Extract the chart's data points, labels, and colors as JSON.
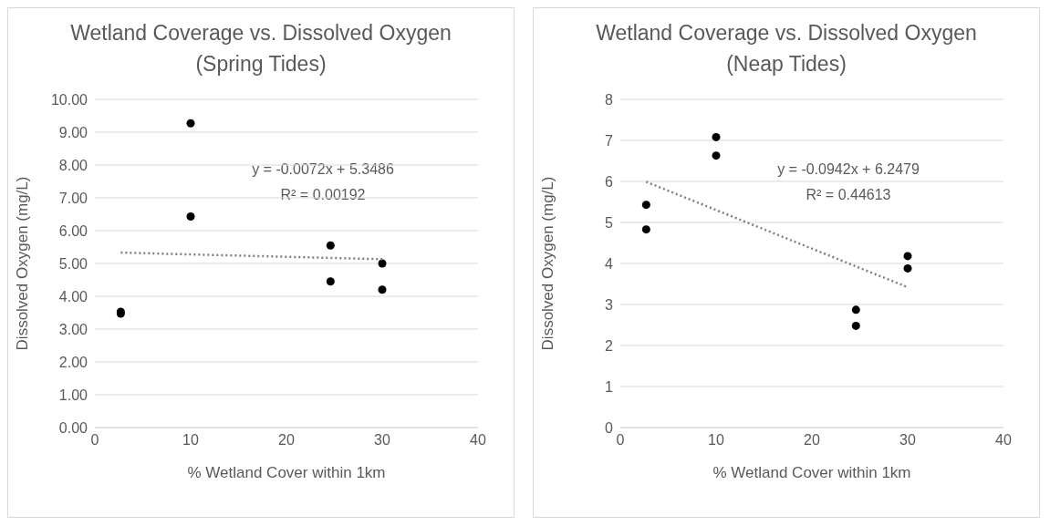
{
  "chart_data": [
    {
      "type": "scatter",
      "title": "Wetland Coverage vs. Dissolved Oxygen (Spring Tides)",
      "xlabel": "% Wetland Cover within 1km",
      "ylabel": "Dissolved Oxygen (mg/L)",
      "annotations": [
        "y = -0.0072x + 5.3486",
        "R² = 0.00192"
      ],
      "xlim": [
        0,
        40
      ],
      "xticks": [
        0,
        10,
        20,
        30,
        40
      ],
      "ylim": [
        0,
        10
      ],
      "yticks": [
        {
          "value": 0,
          "label": "0.00"
        },
        {
          "value": 1,
          "label": "1.00"
        },
        {
          "value": 2,
          "label": "2.00"
        },
        {
          "value": 3,
          "label": "3.00"
        },
        {
          "value": 4,
          "label": "4.00"
        },
        {
          "value": 5,
          "label": "5.00"
        },
        {
          "value": 6,
          "label": "6.00"
        },
        {
          "value": 7,
          "label": "7.00"
        },
        {
          "value": 8,
          "label": "8.00"
        },
        {
          "value": 9,
          "label": "9.00"
        },
        {
          "value": 10,
          "label": "10.00"
        }
      ],
      "grid": "y",
      "legend": false,
      "series": [
        {
          "marker": "circle",
          "color": "#000000",
          "x": [
            2.7,
            2.7,
            10,
            10,
            24.6,
            24.6,
            30,
            30
          ],
          "values": [
            3.53,
            3.47,
            9.27,
            6.43,
            5.55,
            4.45,
            5.0,
            4.2
          ]
        },
        {
          "type": "line",
          "color": "#808080",
          "line_style": "dotted",
          "x": [
            2.7,
            30
          ],
          "values": [
            5.33,
            5.13
          ]
        }
      ]
    },
    {
      "type": "scatter",
      "title": "Wetland Coverage vs. Dissolved Oxygen (Neap Tides)",
      "xlabel": "% Wetland Cover within 1km",
      "ylabel": "Dissolved Oxygen (mg/L)",
      "annotations": [
        "y = -0.0942x + 6.2479",
        "R² = 0.44613"
      ],
      "xlim": [
        0,
        40
      ],
      "xticks": [
        0,
        10,
        20,
        30,
        40
      ],
      "ylim": [
        0,
        8
      ],
      "yticks": [
        0,
        1,
        2,
        3,
        4,
        5,
        6,
        7,
        8
      ],
      "grid": "y",
      "legend": false,
      "series": [
        {
          "marker": "circle",
          "color": "#000000",
          "x": [
            2.7,
            2.7,
            10,
            10,
            24.6,
            24.6,
            30,
            30
          ],
          "values": [
            5.43,
            4.83,
            7.08,
            6.63,
            2.87,
            2.48,
            4.18,
            3.88
          ]
        },
        {
          "type": "line",
          "color": "#808080",
          "line_style": "dotted",
          "x": [
            2.7,
            30
          ],
          "values": [
            5.99,
            3.42
          ]
        }
      ]
    }
  ]
}
